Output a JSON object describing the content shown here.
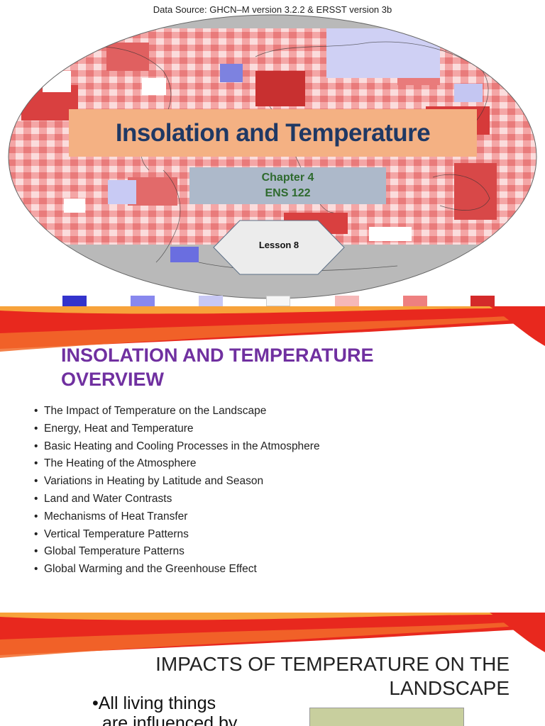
{
  "slides": {
    "title_slide": {
      "data_source": "Data Source: GHCN–M version 3.2.2 & ERSST version 3b",
      "title": "Insolation and Temperature",
      "chapter": "Chapter 4",
      "course": "ENS 122",
      "lesson": "Lesson 8",
      "legend_colors": [
        "#3333cc",
        "#8888ee",
        "#c8c8f4",
        "#f6f6f6",
        "#f6b8b8",
        "#ee8080",
        "#d42a2a"
      ]
    },
    "overview_slide": {
      "title": "INSOLATION AND TEMPERATURE OVERVIEW",
      "bullet_glyph": "•",
      "bullets": [
        "The Impact of Temperature on the Landscape",
        "Energy, Heat and Temperature",
        "Basic Heating and Cooling Processes in the Atmosphere",
        "The Heating of the Atmosphere",
        "Variations in Heating by Latitude and Season",
        "Land and Water Contrasts",
        "Mechanisms of Heat Transfer",
        "Vertical Temperature Patterns",
        "Global Temperature Patterns",
        "Global Warming and the Greenhouse Effect"
      ]
    },
    "impacts_slide": {
      "title_line1": "IMPACTS OF TEMPERATURE ON THE",
      "title_line2": "LANDSCAPE",
      "bullet_line1": "•All living things",
      "bullet_line2": "are influenced by"
    }
  },
  "colors": {
    "title_box": "#f4b183",
    "title_text": "#1f3864",
    "subtitle_box": "#adb9ca",
    "subtitle_text": "#2e6a2e",
    "overview_title": "#7030a0",
    "wave_red": "#e8281e",
    "wave_orange": "#f7a23a"
  }
}
